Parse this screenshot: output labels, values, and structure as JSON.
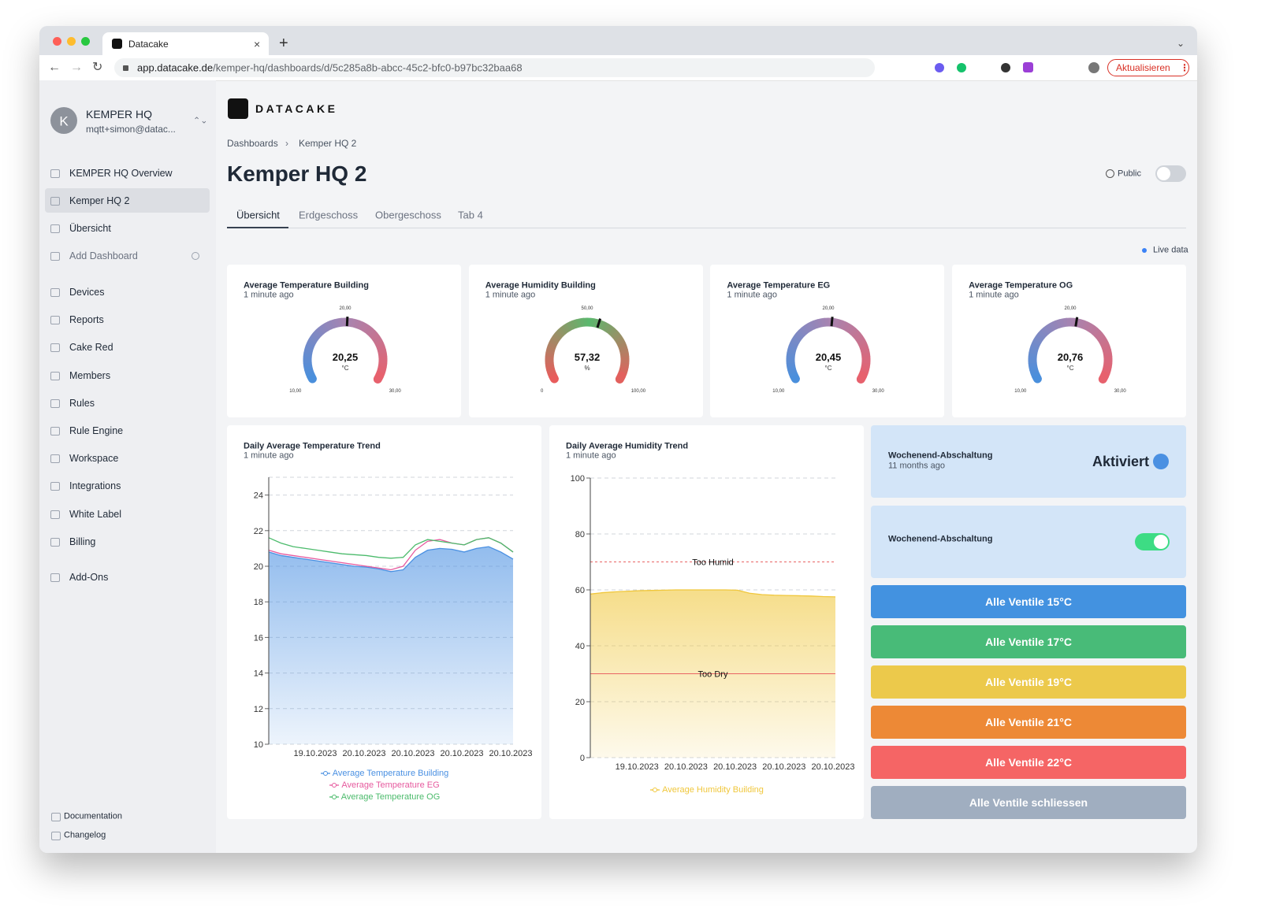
{
  "browser": {
    "tab_title": "Datacake",
    "url_host": "app.datacake.de",
    "url_path": "/kemper-hq/dashboards/d/5c285a8b-abcc-45c2-bfc0-b97bc32baa68",
    "update_button": "Aktualisieren"
  },
  "sidebar": {
    "avatar": "K",
    "org": "KEMPER HQ",
    "email": "mqtt+simon@datac...",
    "dashboards": [
      "KEMPER HQ Overview",
      "Kemper HQ 2",
      "Übersicht",
      "Add Dashboard"
    ],
    "active_dashboard": 1,
    "nav": [
      "Devices",
      "Reports",
      "Cake Red",
      "Members",
      "Rules",
      "Rule Engine",
      "Workspace",
      "Integrations",
      "White Label",
      "Billing",
      "Add-Ons"
    ],
    "footer": [
      "Documentation",
      "Changelog"
    ]
  },
  "header": {
    "logo": "DATACAKE",
    "breadcrumbs": [
      "Dashboards",
      "Kemper HQ 2"
    ],
    "title": "Kemper HQ 2",
    "public": "Public",
    "tabs": [
      "Übersicht",
      "Erdgeschoss",
      "Obergeschoss",
      "Tab 4"
    ],
    "active_tab": 0,
    "live": "Live data"
  },
  "gauges": [
    {
      "title": "Average Temperature Building",
      "subtitle": "1 minute ago",
      "value": 20.25,
      "value_label": "20,25",
      "unit": "°C",
      "min": {
        "value": 10,
        "label": "10,00"
      },
      "mid": {
        "value": 20,
        "label": "20,00"
      },
      "max": {
        "value": 30,
        "label": "30,00"
      },
      "colors": [
        "#4a8fdc",
        "#a884b0",
        "#ea5f6a"
      ]
    },
    {
      "title": "Average Humidity Building",
      "subtitle": "1 minute ago",
      "value": 57.32,
      "value_label": "57,32",
      "unit": "%",
      "min": 0,
      "mid": {
        "value": 50,
        "label": "50,00"
      },
      "max": {
        "value": 100,
        "label": "100,00"
      },
      "colors": [
        "#e85c5c",
        "#5bb86e",
        "#e85c5c"
      ]
    },
    {
      "title": "Average Temperature EG",
      "subtitle": "1 minute ago",
      "value": 20.45,
      "value_label": "20,45",
      "unit": "°C",
      "min": {
        "value": 10,
        "label": "10,00"
      },
      "mid": {
        "value": 20,
        "label": "20,00"
      },
      "max": {
        "value": 30,
        "label": "30,00"
      },
      "colors": [
        "#4a8fdc",
        "#a884b0",
        "#ea5f6a"
      ]
    },
    {
      "title": "Average Temperature OG",
      "subtitle": "1 minute ago",
      "value": 20.76,
      "value_label": "20,76",
      "unit": "°C",
      "min": {
        "value": 10,
        "label": "10,00"
      },
      "mid": {
        "value": 20,
        "label": "20,00"
      },
      "max": {
        "value": 30,
        "label": "30,00"
      },
      "colors": [
        "#4a8fdc",
        "#a884b0",
        "#ea5f6a"
      ]
    }
  ],
  "chart_data": [
    {
      "type": "area",
      "title": "Daily Average Temperature Trend",
      "subtitle": "1 minute ago",
      "categories": [
        null,
        null,
        null,
        null,
        "19.10.2023",
        null,
        null,
        null,
        "20.10.2023",
        null,
        null,
        null,
        "20.10.2023",
        null,
        null,
        null,
        "20.10.2023",
        null,
        null,
        null,
        "20.10.2023"
      ],
      "ylim": [
        10,
        25
      ],
      "yticks": [
        10,
        12,
        14,
        16,
        18,
        20,
        22,
        24
      ],
      "grid": true,
      "series": [
        {
          "name": "Average Temperature Building",
          "color": "#4a90e2",
          "fill": true,
          "values": [
            20.8,
            20.6,
            20.5,
            20.4,
            20.3,
            20.2,
            20.1,
            20.0,
            19.95,
            19.85,
            19.7,
            19.8,
            20.5,
            20.9,
            21.0,
            20.95,
            20.8,
            21.0,
            21.1,
            20.8,
            20.4
          ]
        },
        {
          "name": "Average Temperature EG",
          "color": "#e65a9e",
          "fill": false,
          "values": [
            20.9,
            20.7,
            20.6,
            20.5,
            20.4,
            20.3,
            20.2,
            20.1,
            20.0,
            19.9,
            19.8,
            20.0,
            20.9,
            21.4,
            21.5,
            21.3,
            21.2,
            21.5,
            21.6,
            21.3,
            20.8
          ]
        },
        {
          "name": "Average Temperature OG",
          "color": "#4cbb6c",
          "fill": false,
          "values": [
            21.6,
            21.3,
            21.1,
            21.0,
            20.9,
            20.8,
            20.7,
            20.65,
            20.6,
            20.5,
            20.45,
            20.5,
            21.2,
            21.5,
            21.4,
            21.3,
            21.2,
            21.5,
            21.6,
            21.3,
            20.8
          ]
        }
      ]
    },
    {
      "type": "area",
      "title": "Daily Average Humidity Trend",
      "subtitle": "1 minute ago",
      "categories": [
        null,
        null,
        null,
        null,
        "19.10.2023",
        null,
        null,
        null,
        "20.10.2023",
        null,
        null,
        null,
        "20.10.2023",
        null,
        null,
        null,
        "20.10.2023",
        null,
        null,
        null,
        "20.10.2023"
      ],
      "ylim": [
        0,
        100
      ],
      "yticks": [
        0,
        20,
        40,
        60,
        80,
        100
      ],
      "grid": true,
      "annotations": [
        {
          "label": "Too Humid",
          "value": 70,
          "color": "#e86464",
          "dashed": true
        },
        {
          "label": "Too Dry",
          "value": 30,
          "color": "#e86464",
          "dashed": false
        }
      ],
      "series": [
        {
          "name": "Average Humidity Building",
          "color": "#f0c73c",
          "fill": true,
          "values": [
            58.5,
            59.0,
            59.3,
            59.5,
            59.7,
            59.8,
            59.9,
            60.0,
            60.0,
            60.0,
            60.0,
            60.0,
            59.9,
            58.8,
            58.3,
            58.1,
            58.0,
            57.9,
            57.8,
            57.6,
            57.5
          ]
        }
      ]
    }
  ],
  "controls": {
    "status_card": {
      "title": "Wochenend-Abschaltung",
      "subtitle": "11 months ago",
      "state": "Aktiviert"
    },
    "switch_card": {
      "title": "Wochenend-Abschaltung",
      "on": true
    },
    "buttons": [
      {
        "label": "Alle Ventile 15°C",
        "color": "#4392e0"
      },
      {
        "label": "Alle Ventile 17°C",
        "color": "#48bb78"
      },
      {
        "label": "Alle Ventile 19°C",
        "color": "#ecc94b"
      },
      {
        "label": "Alle Ventile 21°C",
        "color": "#ed8936"
      },
      {
        "label": "Alle Ventile 22°C",
        "color": "#f56565"
      },
      {
        "label": "Alle Ventile schliessen",
        "color": "#a0aec0"
      }
    ]
  }
}
